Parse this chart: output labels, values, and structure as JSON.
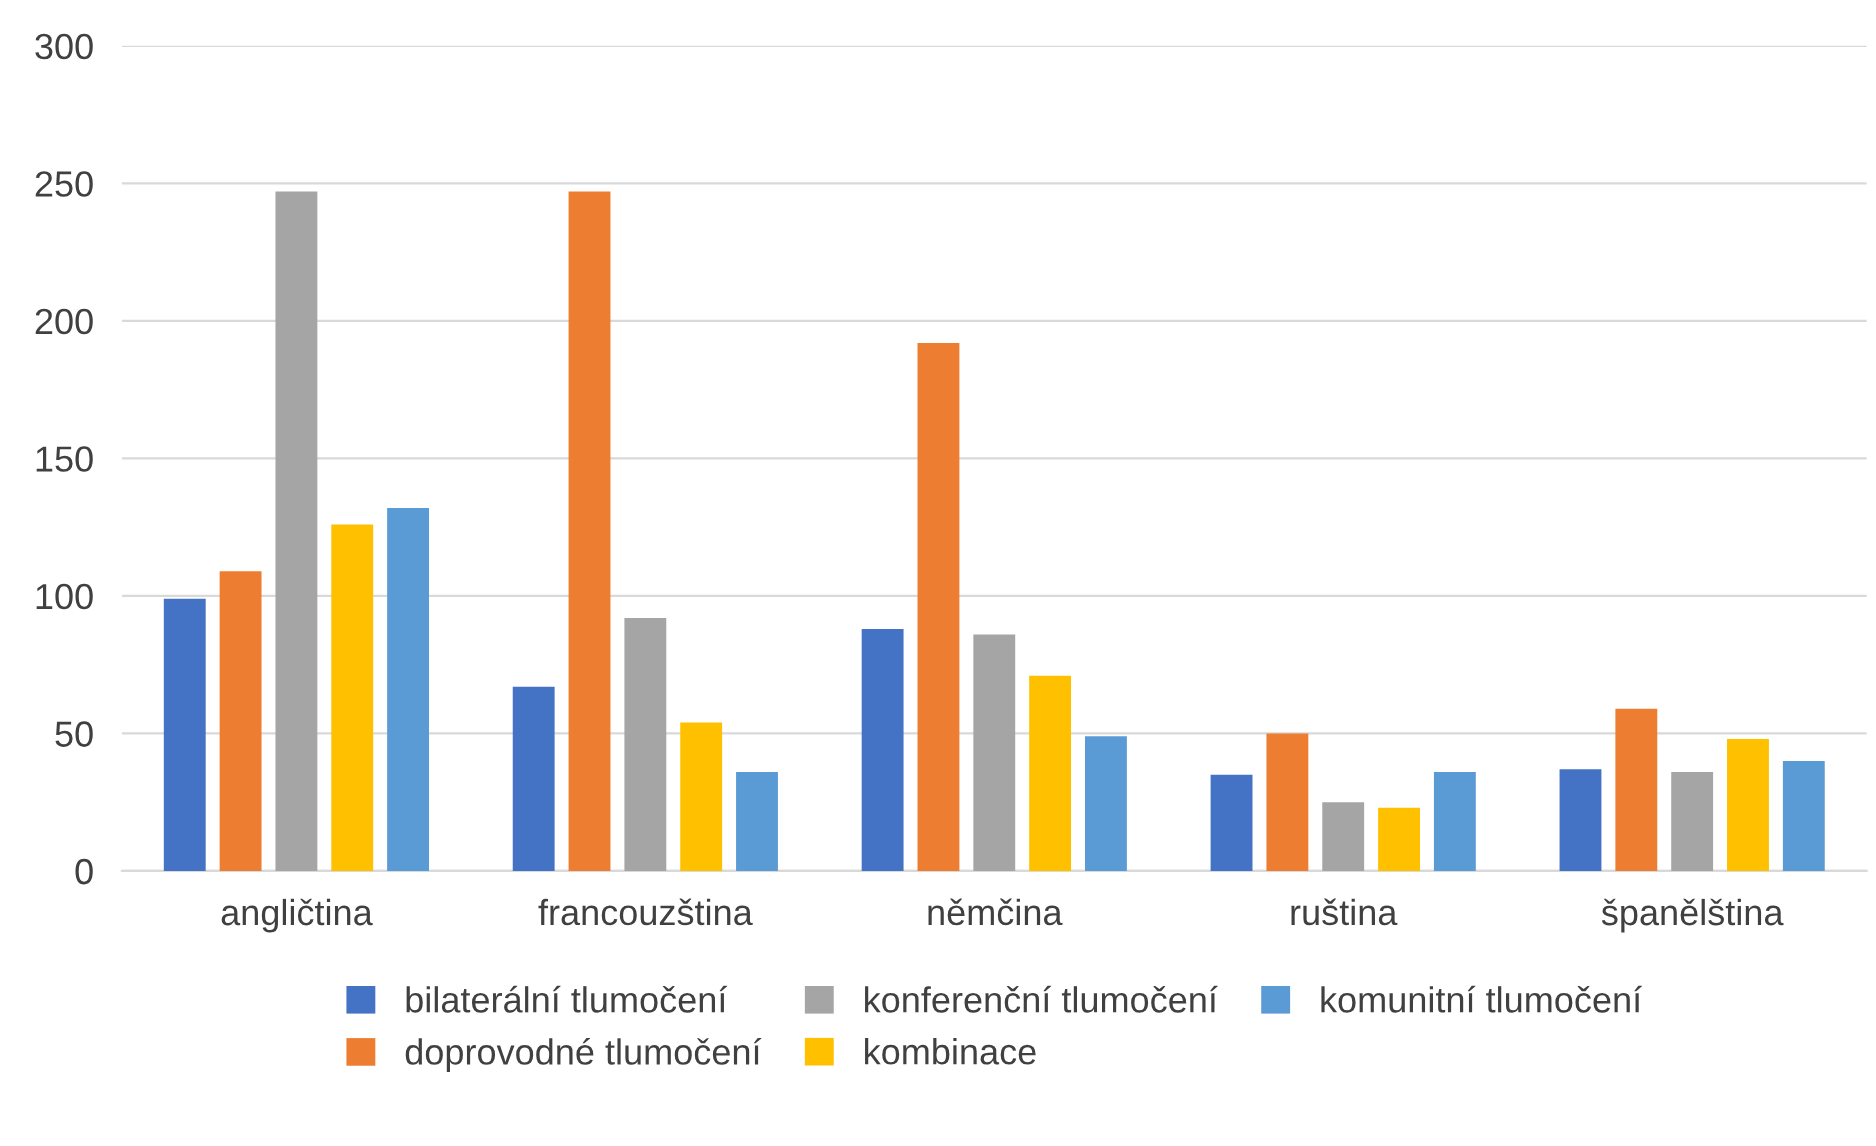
{
  "chart_data": {
    "type": "bar",
    "categories": [
      "angličtina",
      "francouzština",
      "němčina",
      "ruština",
      "španělština"
    ],
    "series": [
      {
        "name": "bilaterální tlumočení",
        "color": "#4472c4",
        "values": [
          99,
          67,
          88,
          35,
          37
        ]
      },
      {
        "name": "doprovodné tlumočení",
        "color": "#ed7d31",
        "values": [
          109,
          247,
          192,
          50,
          59
        ]
      },
      {
        "name": "konferenční tlumočení",
        "color": "#a5a5a5",
        "values": [
          247,
          92,
          86,
          25,
          36
        ]
      },
      {
        "name": "kombinace",
        "color": "#ffc000",
        "values": [
          126,
          54,
          71,
          23,
          48
        ]
      },
      {
        "name": "komunitní tlumočení",
        "color": "#5b9bd5",
        "values": [
          132,
          36,
          49,
          36,
          40
        ]
      }
    ],
    "ylim": [
      0,
      300
    ],
    "yticks": [
      0,
      50,
      100,
      150,
      200,
      250,
      300
    ],
    "grid": "y",
    "legend": "bottom"
  }
}
